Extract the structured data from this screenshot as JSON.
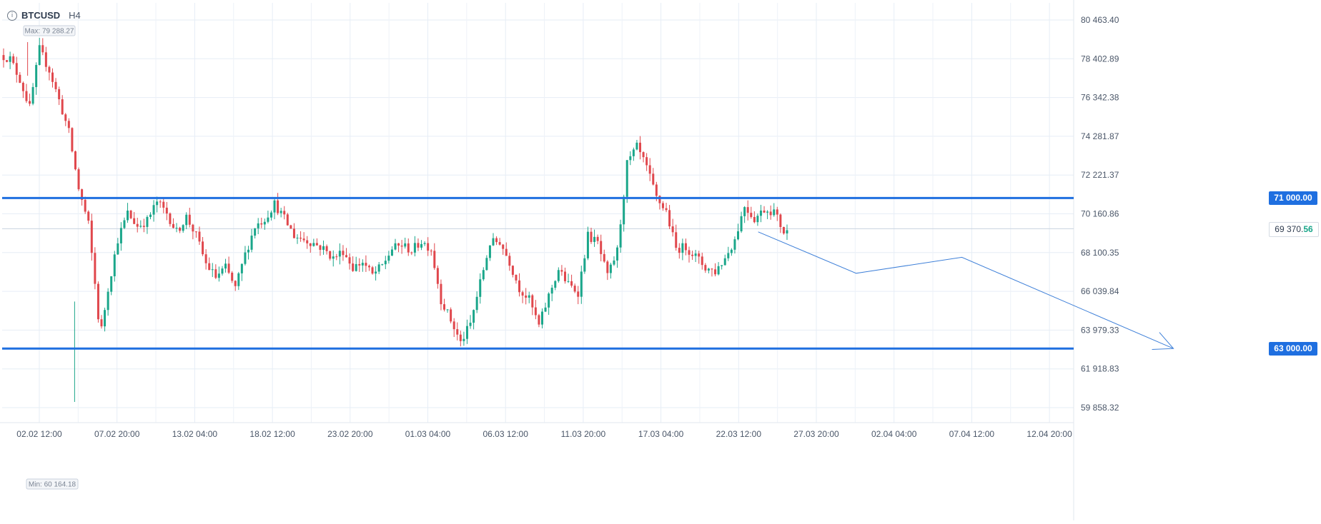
{
  "header": {
    "info_icon": "info-icon",
    "symbol": "BTCUSD",
    "interval": "H4"
  },
  "chart_data": {
    "type": "candlestick",
    "symbol": "BTCUSD",
    "timeframe": "H4",
    "x_ticks": [
      "02.02 12:00",
      "07.02 20:00",
      "13.02 04:00",
      "18.02 12:00",
      "23.02 20:00",
      "01.03 04:00",
      "06.03 12:00",
      "11.03 20:00",
      "17.03 04:00",
      "22.03 12:00",
      "27.03 20:00",
      "02.04 04:00",
      "07.04 12:00",
      "12.04 20:00"
    ],
    "y_ticks": [
      "80 463.40",
      "78 402.89",
      "76 342.38",
      "74 281.87",
      "72 221.37",
      "70 160.86",
      "68 100.35",
      "66 039.84",
      "63 979.33",
      "61 918.83",
      "59 858.32"
    ],
    "ylim": [
      59858.32,
      80463.4
    ],
    "grid": true,
    "max_label": "Max: 79 288.27",
    "min_label": "Min: 60 164.18",
    "max_value": 79288.27,
    "min_value": 60164.18,
    "current_price_int": "69 370.",
    "current_price_dec": "56",
    "current_price": 69370.56,
    "horizontal_levels": [
      {
        "label": "71 000.00",
        "value": 71000.0,
        "color": "#1f6fe0"
      },
      {
        "label": "63 000.00",
        "value": 63000.0,
        "color": "#1f6fe0"
      }
    ],
    "forecast_path": [
      {
        "day": 38.6,
        "value": 69200
      },
      {
        "day": 43.6,
        "value": 67000
      },
      {
        "day": 49.0,
        "value": 67850
      },
      {
        "day": 59.8,
        "value": 63000
      }
    ],
    "up_color": "#1aa68a",
    "down_color": "#e0474c",
    "candle_anchors": [
      [
        0,
        78600
      ],
      [
        0.5,
        78400
      ],
      [
        1.0,
        77300
      ],
      [
        1.5,
        75800
      ],
      [
        2.0,
        78900
      ],
      [
        2.5,
        77800
      ],
      [
        3.0,
        76200
      ],
      [
        3.5,
        74500
      ],
      [
        4.0,
        71500
      ],
      [
        4.5,
        69600
      ],
      [
        4.9,
        65800
      ],
      [
        5.1,
        63600
      ],
      [
        5.5,
        66200
      ],
      [
        6.0,
        68800
      ],
      [
        6.5,
        70200
      ],
      [
        7.0,
        69500
      ],
      [
        7.5,
        69800
      ],
      [
        8.0,
        70800
      ],
      [
        8.5,
        70200
      ],
      [
        9.0,
        69200
      ],
      [
        9.5,
        70000
      ],
      [
        10.0,
        69000
      ],
      [
        10.5,
        67500
      ],
      [
        11.0,
        66800
      ],
      [
        11.5,
        67300
      ],
      [
        12.0,
        66200
      ],
      [
        12.5,
        68000
      ],
      [
        13.0,
        69500
      ],
      [
        13.5,
        69900
      ],
      [
        14.0,
        70700
      ],
      [
        14.5,
        69900
      ],
      [
        15.0,
        69000
      ],
      [
        15.5,
        68800
      ],
      [
        16.0,
        68600
      ],
      [
        16.5,
        68300
      ],
      [
        17.0,
        67800
      ],
      [
        17.5,
        68200
      ],
      [
        18.0,
        67300
      ],
      [
        18.5,
        67600
      ],
      [
        19.0,
        66900
      ],
      [
        19.5,
        67400
      ],
      [
        20.0,
        68300
      ],
      [
        20.5,
        68500
      ],
      [
        21.0,
        68200
      ],
      [
        21.5,
        68700
      ],
      [
        22.0,
        68300
      ],
      [
        22.5,
        65600
      ],
      [
        23.0,
        64500
      ],
      [
        23.5,
        63300
      ],
      [
        24.0,
        64300
      ],
      [
        24.5,
        66500
      ],
      [
        25.0,
        68600
      ],
      [
        25.5,
        68700
      ],
      [
        26.0,
        67600
      ],
      [
        26.5,
        66200
      ],
      [
        27.0,
        65600
      ],
      [
        27.5,
        64200
      ],
      [
        28.0,
        65800
      ],
      [
        28.5,
        67200
      ],
      [
        29.0,
        66400
      ],
      [
        29.5,
        66000
      ],
      [
        30.0,
        69000
      ],
      [
        30.5,
        68600
      ],
      [
        31.0,
        66800
      ],
      [
        31.5,
        68200
      ],
      [
        32.0,
        72800
      ],
      [
        32.5,
        73700
      ],
      [
        33.0,
        72600
      ],
      [
        33.5,
        71000
      ],
      [
        34.0,
        70300
      ],
      [
        34.5,
        68300
      ],
      [
        35.0,
        68400
      ],
      [
        35.5,
        67900
      ],
      [
        36.0,
        67300
      ],
      [
        36.5,
        67100
      ],
      [
        37.0,
        67800
      ],
      [
        37.5,
        68800
      ],
      [
        38.0,
        70600
      ],
      [
        38.5,
        69900
      ],
      [
        39.0,
        70400
      ],
      [
        39.5,
        70300
      ],
      [
        40.0,
        69200
      ]
    ]
  }
}
